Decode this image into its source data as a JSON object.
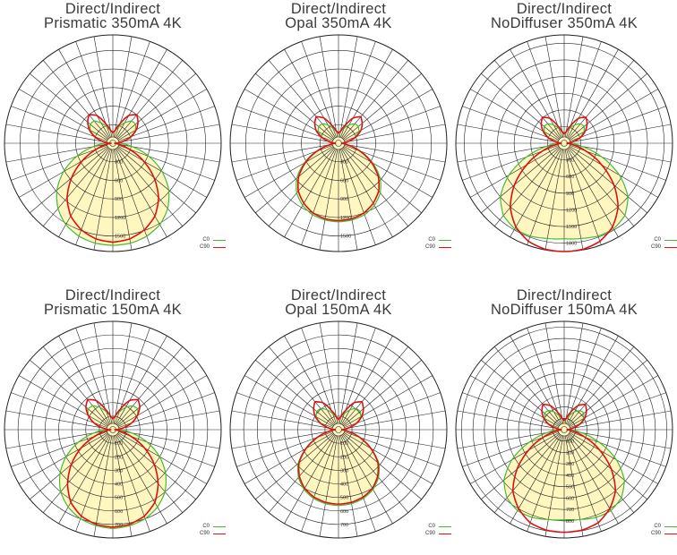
{
  "colors": {
    "c0": "#44bb33",
    "c90": "#dd1111",
    "fill": "#fff6c0",
    "grid": "#222222"
  },
  "chart_data": [
    {
      "type": "polar",
      "title": [
        "Direct/Indirect",
        "Prismatic 350mA 4K"
      ],
      "series_names": [
        "C0",
        "C90"
      ],
      "rmax": 1750,
      "tick_labels": [
        "300",
        "600",
        "900",
        "1200",
        "1500"
      ],
      "down": {
        "c0": [
          1650,
          1640,
          1600,
          1520,
          1380,
          1180,
          920,
          620,
          320,
          100
        ],
        "c90": [
          1600,
          1570,
          1490,
          1360,
          1150,
          870,
          570,
          280,
          90,
          20
        ]
      },
      "up": {
        "c0": [
          180,
          200,
          280,
          380,
          470,
          480,
          420,
          300,
          150,
          50
        ],
        "c90": [
          170,
          210,
          330,
          520,
          600,
          530,
          440,
          320,
          160,
          50
        ]
      }
    },
    {
      "type": "polar",
      "title": [
        "Direct/Indirect",
        "Opal 350mA 4K"
      ],
      "series_names": [
        "C0",
        "C90"
      ],
      "rmax": 1750,
      "tick_labels": [
        "300",
        "600",
        "900",
        "1200",
        "1500"
      ],
      "down": {
        "c0": [
          1270,
          1260,
          1230,
          1160,
          1050,
          880,
          640,
          380,
          150,
          40
        ],
        "c90": [
          1250,
          1240,
          1200,
          1120,
          1010,
          840,
          610,
          360,
          140,
          40
        ]
      },
      "up": {
        "c0": [
          170,
          190,
          250,
          340,
          410,
          420,
          380,
          280,
          150,
          50
        ],
        "c90": [
          160,
          200,
          300,
          470,
          560,
          500,
          420,
          300,
          150,
          50
        ]
      }
    },
    {
      "type": "polar",
      "title": [
        "Direct/Indirect",
        "NoDiffuser 350mA 4K"
      ],
      "series_names": [
        "C0",
        "C90"
      ],
      "rmax": 1950,
      "tick_labels": [
        "300",
        "600",
        "900",
        "1200",
        "1500",
        "1800"
      ],
      "down": {
        "c0": [
          1720,
          1740,
          1780,
          1780,
          1700,
          1500,
          1150,
          720,
          320,
          100
        ],
        "c90": [
          1950,
          1940,
          1880,
          1740,
          1510,
          1170,
          780,
          420,
          150,
          40
        ]
      },
      "up": {
        "c0": [
          180,
          200,
          280,
          380,
          460,
          470,
          410,
          300,
          150,
          50
        ],
        "c90": [
          170,
          210,
          330,
          520,
          610,
          540,
          440,
          320,
          160,
          50
        ]
      }
    },
    {
      "type": "polar",
      "title": [
        "Direct/Indirect",
        "Prismatic 150mA 4K"
      ],
      "series_names": [
        "C0",
        "C90"
      ],
      "rmax": 800,
      "tick_labels": [
        "100",
        "200",
        "300",
        "400",
        "500",
        "600",
        "700"
      ],
      "down": {
        "c0": [
          730,
          720,
          700,
          660,
          600,
          510,
          400,
          270,
          140,
          45
        ],
        "c90": [
          720,
          710,
          680,
          620,
          520,
          400,
          270,
          140,
          45,
          10
        ]
      },
      "up": {
        "c0": [
          85,
          100,
          140,
          190,
          230,
          240,
          210,
          150,
          80,
          25
        ],
        "c90": [
          80,
          100,
          160,
          250,
          290,
          260,
          210,
          150,
          80,
          25
        ]
      }
    },
    {
      "type": "polar",
      "title": [
        "Direct/Indirect",
        "Opal 150mA 4K"
      ],
      "series_names": [
        "C0",
        "C90"
      ],
      "rmax": 800,
      "tick_labels": [
        "100",
        "200",
        "300",
        "400",
        "500",
        "600",
        "700"
      ],
      "down": {
        "c0": [
          560,
          555,
          540,
          510,
          460,
          390,
          280,
          170,
          70,
          20
        ],
        "c90": [
          550,
          545,
          530,
          500,
          450,
          380,
          275,
          165,
          65,
          20
        ]
      },
      "up": {
        "c0": [
          80,
          95,
          125,
          170,
          205,
          210,
          190,
          140,
          75,
          25
        ],
        "c90": [
          75,
          95,
          150,
          230,
          270,
          240,
          200,
          145,
          75,
          25
        ]
      }
    },
    {
      "type": "polar",
      "title": [
        "Direct/Indirect",
        "NoDiffuser 150mA 4K"
      ],
      "series_names": [
        "C0",
        "C90"
      ],
      "rmax": 950,
      "tick_labels": [
        "100",
        "200",
        "300",
        "400",
        "500",
        "600",
        "700",
        "800"
      ],
      "down": {
        "c0": [
          790,
          800,
          820,
          820,
          780,
          690,
          530,
          330,
          150,
          45
        ],
        "c90": [
          900,
          895,
          870,
          800,
          700,
          540,
          360,
          195,
          70,
          20
        ]
      },
      "up": {
        "c0": [
          85,
          95,
          130,
          180,
          220,
          225,
          195,
          145,
          75,
          25
        ],
        "c90": [
          80,
          100,
          160,
          245,
          290,
          255,
          210,
          150,
          75,
          25
        ]
      }
    }
  ]
}
